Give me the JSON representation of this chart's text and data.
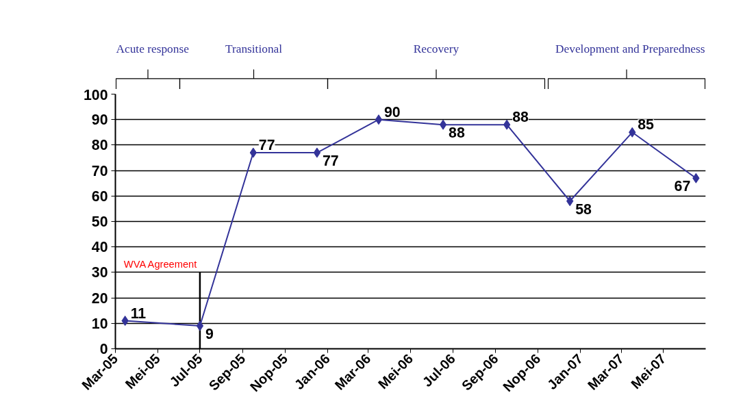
{
  "chart_data": {
    "type": "line",
    "x": [
      "2005-03-15",
      "2005-07-01",
      "2005-09-16",
      "2005-12-17",
      "2006-03-16",
      "2006-06-17",
      "2006-09-17",
      "2006-12-17",
      "2007-03-17",
      "2007-06-17"
    ],
    "series": [
      {
        "color": "#333399",
        "values": [
          11,
          9,
          77,
          77,
          90,
          88,
          88,
          58,
          85,
          67
        ]
      }
    ],
    "xlim": [
      "2005-03-01",
      "2007-07-01"
    ],
    "xticks": [
      {
        "value": "2005-03-01",
        "label": "Mar-05"
      },
      {
        "value": "2005-05-01",
        "label": "Mei-05"
      },
      {
        "value": "2005-07-01",
        "label": "Jul-05"
      },
      {
        "value": "2005-09-01",
        "label": "Sep-05"
      },
      {
        "value": "2005-11-01",
        "label": "Nop-05"
      },
      {
        "value": "2006-01-01",
        "label": "Jan-06"
      },
      {
        "value": "2006-03-01",
        "label": "Mar-06"
      },
      {
        "value": "2006-05-01",
        "label": "Mei-06"
      },
      {
        "value": "2006-07-01",
        "label": "Jul-06"
      },
      {
        "value": "2006-09-01",
        "label": "Sep-06"
      },
      {
        "value": "2006-11-01",
        "label": "Nop-06"
      },
      {
        "value": "2007-01-01",
        "label": "Jan-07"
      },
      {
        "value": "2007-03-01",
        "label": "Mar-07"
      },
      {
        "value": "2007-05-01",
        "label": "Mei-07"
      }
    ],
    "ylim": [
      0,
      100
    ],
    "yticks": [
      0,
      10,
      20,
      30,
      40,
      50,
      60,
      70,
      80,
      90,
      100
    ],
    "grid": "y",
    "marker": "diamond",
    "line_style": "solid",
    "data_labels": true,
    "ref_lines": [
      {
        "axis": "x",
        "value": "2005-07-01",
        "label": "WVA Agreement",
        "color": "#000000"
      }
    ],
    "annotations": [
      "Acute response",
      "Transitional",
      "Recovery",
      "Development and Preparedness"
    ]
  }
}
